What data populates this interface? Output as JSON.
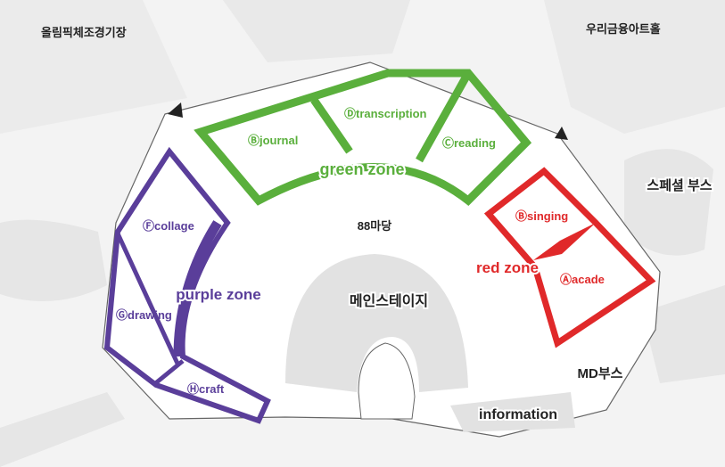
{
  "landmarks": {
    "top_left": "올림픽체조경기장",
    "top_right": "우리금융아트홀",
    "special_booth": "스페셜 부스",
    "center_plaza": "88마당",
    "main_stage": "메인스테이지",
    "md_booth": "MD부스",
    "information": "information"
  },
  "zones": {
    "green": {
      "name": "green  zone",
      "color": "#5aaf3c",
      "booths": [
        {
          "code": "B",
          "label": "journal",
          "text": "Ⓑjournal"
        },
        {
          "code": "D",
          "label": "transcription",
          "text": "Ⓓtranscription"
        },
        {
          "code": "C",
          "label": "reading",
          "text": "Ⓒreading"
        }
      ]
    },
    "purple": {
      "name": "purple zone",
      "color": "#5a3e9a",
      "booths": [
        {
          "code": "F",
          "label": "collage",
          "text": "Ⓕcollage"
        },
        {
          "code": "G",
          "label": "drawing",
          "text": "Ⓖdrawing"
        },
        {
          "code": "H",
          "label": "craft",
          "text": "Ⓗcraft"
        }
      ]
    },
    "red": {
      "name": "red zone",
      "color": "#e0292a",
      "booths": [
        {
          "code": "B",
          "label": "singing",
          "text": "Ⓑsinging"
        },
        {
          "code": "A",
          "label": "acade",
          "text": "Ⓐacade"
        }
      ]
    }
  },
  "colors": {
    "background": "#f3f3f3",
    "path": "#e6e6e6",
    "plaza": "#ffffff",
    "stage": "#e2e2e2",
    "outline": "#666666"
  }
}
